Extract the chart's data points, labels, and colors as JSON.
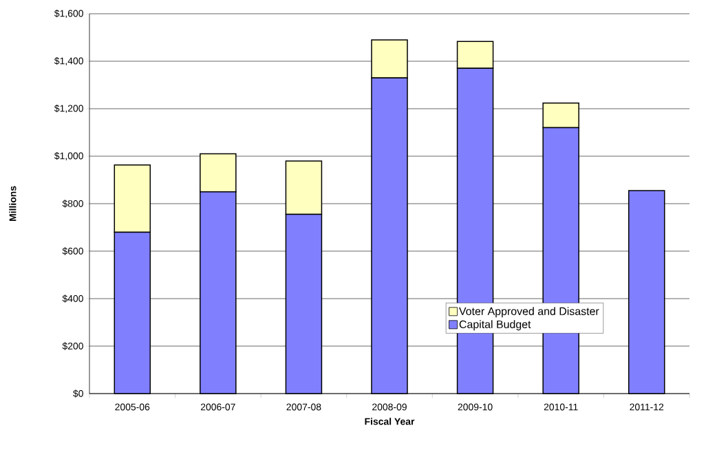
{
  "chart_data": {
    "type": "bar",
    "stacked": true,
    "xlabel": "Fiscal Year",
    "ylabel": "Millions",
    "categories": [
      "2005-06",
      "2006-07",
      "2007-08",
      "2008-09",
      "2009-10",
      "2010-11",
      "2011-12"
    ],
    "series": [
      {
        "name": "Capital Budget",
        "color": "#8080ff",
        "values": [
          680,
          850,
          755,
          1330,
          1370,
          1120,
          855
        ]
      },
      {
        "name": "Voter Approved and Disaster",
        "color": "#ffffc0",
        "values": [
          283,
          160,
          225,
          160,
          113,
          104,
          null
        ]
      }
    ],
    "ylim": [
      0,
      1600
    ],
    "yticks": [
      {
        "value": 0,
        "label": "$0"
      },
      {
        "value": 200,
        "label": "$200"
      },
      {
        "value": 400,
        "label": "$400"
      },
      {
        "value": 600,
        "label": "$600"
      },
      {
        "value": 800,
        "label": "$800"
      },
      {
        "value": 1000,
        "label": "$1,000"
      },
      {
        "value": 1200,
        "label": "$1,200"
      },
      {
        "value": 1400,
        "label": "$1,400"
      },
      {
        "value": 1600,
        "label": "$1,600"
      }
    ],
    "grid": "y",
    "legend": "bottom right"
  }
}
